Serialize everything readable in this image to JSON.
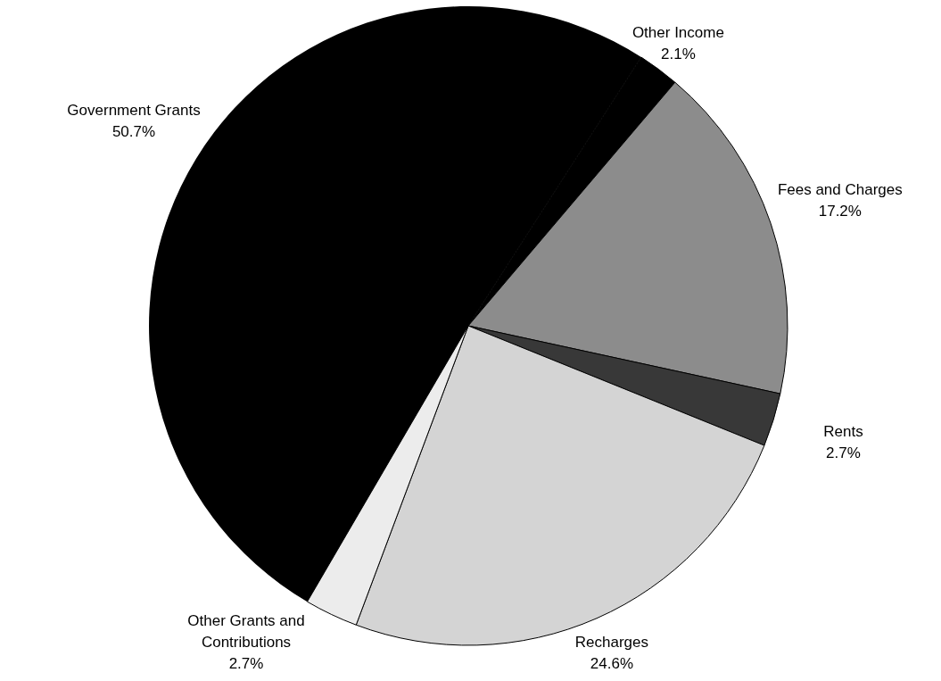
{
  "chart_data": {
    "type": "pie",
    "categories": [
      "Other Income",
      "Fees and Charges",
      "Rents",
      "Recharges",
      "Other Grants and Contributions",
      "Government Grants"
    ],
    "values": [
      2.1,
      17.2,
      2.7,
      24.6,
      2.7,
      50.7
    ],
    "value_labels": [
      "2.1%",
      "17.2%",
      "2.7%",
      "24.6%",
      "2.7%",
      "50.7%"
    ],
    "colors": [
      "#000000",
      "#8c8c8c",
      "#383838",
      "#d4d4d4",
      "#ececec",
      "#000000"
    ]
  }
}
